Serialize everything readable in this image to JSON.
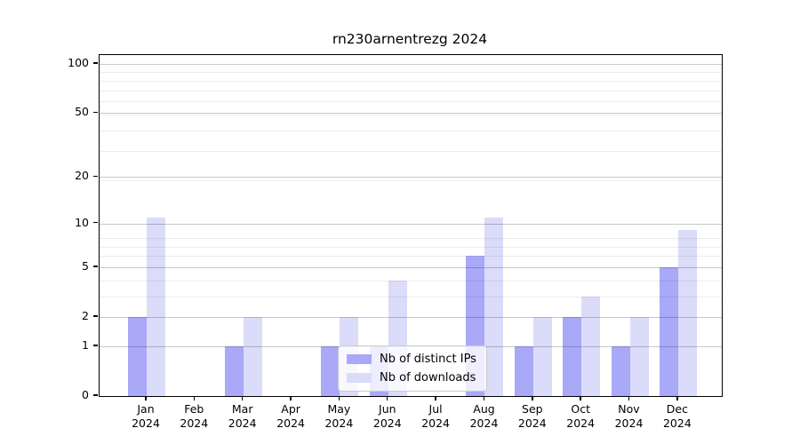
{
  "chart_data": {
    "type": "bar",
    "title": "rn230arnentrezg 2024",
    "categories": [
      "Jan 2024",
      "Feb 2024",
      "Mar 2024",
      "Apr 2024",
      "May 2024",
      "Jun 2024",
      "Jul 2024",
      "Aug 2024",
      "Sep 2024",
      "Oct 2024",
      "Nov 2024",
      "Dec 2024"
    ],
    "series": [
      {
        "name": "Nb of distinct IPs",
        "color": "#a9a9f8",
        "values": [
          2,
          0,
          1,
          0,
          1,
          1,
          0,
          6,
          1,
          2,
          1,
          5
        ]
      },
      {
        "name": "Nb of downloads",
        "color": "#dbdbfa",
        "values": [
          11,
          0,
          2,
          0,
          2,
          4,
          0,
          11,
          2,
          3,
          2,
          9
        ]
      }
    ],
    "yscale": "log1p",
    "yticks": [
      0,
      1,
      2,
      5,
      10,
      20,
      50,
      100
    ],
    "minor_yticks": [
      3,
      4,
      6,
      7,
      8,
      19,
      29,
      39,
      49,
      59,
      69,
      79,
      89
    ],
    "ylim": [
      0,
      113
    ],
    "xlabel": "",
    "ylabel": "",
    "grid": true,
    "legend_position": "lower center",
    "colors": {
      "major_grid": "#c9c9c9",
      "minor_grid": "#ececec",
      "axis": "#000000",
      "legend_border": "#cccccc",
      "legend_bg": "rgba(255,255,255,0.8)"
    }
  }
}
